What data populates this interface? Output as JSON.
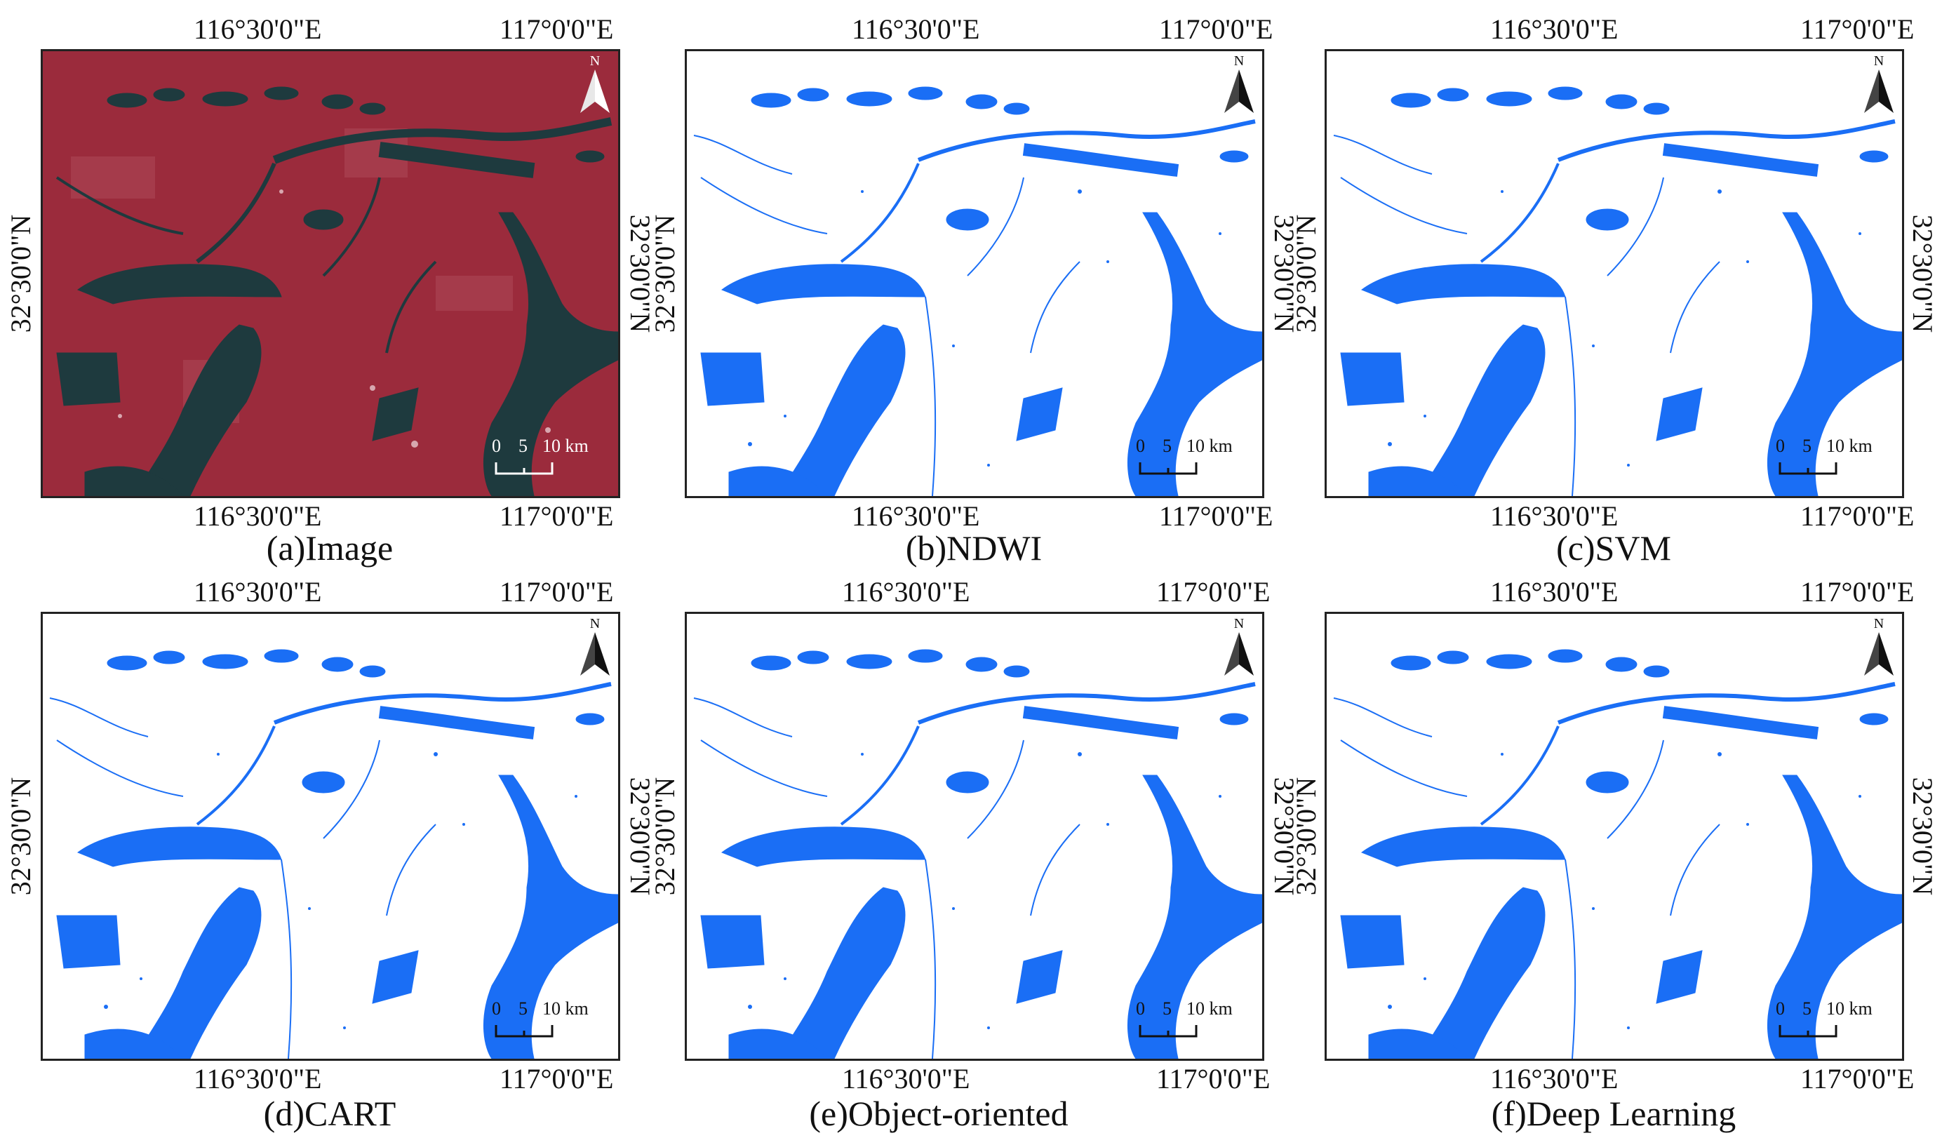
{
  "panels": [
    {
      "id": "a",
      "caption": "(a)Image",
      "style": "false-color"
    },
    {
      "id": "b",
      "caption": "(b)NDWI",
      "style": "water"
    },
    {
      "id": "c",
      "caption": "(c)SVM",
      "style": "water"
    },
    {
      "id": "d",
      "caption": "(d)CART",
      "style": "water"
    },
    {
      "id": "e",
      "caption": "(e)Object-oriented",
      "style": "water"
    },
    {
      "id": "f",
      "caption": "(f)Deep Learning",
      "style": "water"
    }
  ],
  "axis": {
    "lon_left": "116°30'0\"E",
    "lon_right": "117°0'0\"E",
    "lat": "32°30'0\"N"
  },
  "north_label": "N",
  "scale_bar": {
    "zero": "0",
    "mid": "5",
    "end": "10 km"
  },
  "colors": {
    "water": "#1a6ef5",
    "image_land": "#9b2b3c",
    "image_water": "#1e3a3e",
    "frame": "#222222"
  }
}
